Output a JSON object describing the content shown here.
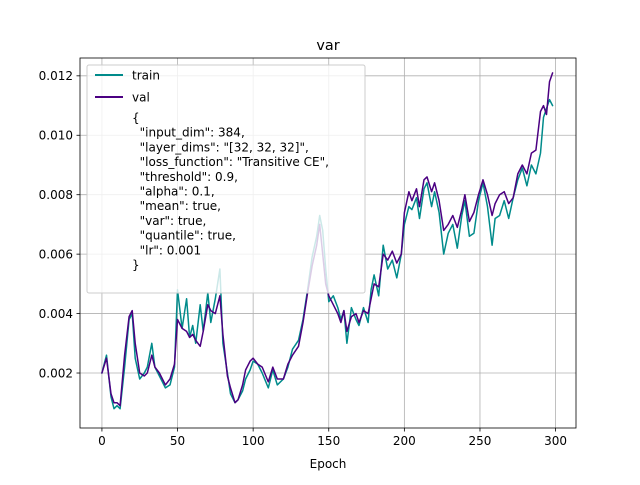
{
  "chart_data": {
    "type": "line",
    "title": "var",
    "xlabel": "Epoch",
    "ylabel": "",
    "xlim": [
      -14.5,
      313.5
    ],
    "ylim": [
      0.00015,
      0.0126
    ],
    "x_ticks": [
      0,
      50,
      100,
      150,
      200,
      250,
      300
    ],
    "y_ticks": [
      0.002,
      0.004,
      0.006,
      0.008,
      0.01,
      0.012
    ],
    "y_tick_labels": [
      "0.002",
      "0.004",
      "0.006",
      "0.008",
      "0.010",
      "0.012"
    ],
    "grid": true,
    "legend_position": "upper-left",
    "series": [
      {
        "name": "train",
        "color": "#008b8b",
        "points": [
          [
            0,
            0.002
          ],
          [
            3,
            0.0026
          ],
          [
            6,
            0.0012
          ],
          [
            8,
            0.0008
          ],
          [
            10,
            0.0009
          ],
          [
            12,
            0.0008
          ],
          [
            15,
            0.0022
          ],
          [
            18,
            0.0038
          ],
          [
            20,
            0.004
          ],
          [
            22,
            0.0025
          ],
          [
            25,
            0.0018
          ],
          [
            28,
            0.002
          ],
          [
            30,
            0.0022
          ],
          [
            33,
            0.003
          ],
          [
            35,
            0.0022
          ],
          [
            38,
            0.0019
          ],
          [
            40,
            0.0017
          ],
          [
            42,
            0.0015
          ],
          [
            45,
            0.0016
          ],
          [
            48,
            0.0022
          ],
          [
            50,
            0.0048
          ],
          [
            53,
            0.0035
          ],
          [
            56,
            0.0045
          ],
          [
            58,
            0.0032
          ],
          [
            60,
            0.0036
          ],
          [
            62,
            0.003
          ],
          [
            65,
            0.0043
          ],
          [
            67,
            0.0034
          ],
          [
            70,
            0.0047
          ],
          [
            72,
            0.0037
          ],
          [
            75,
            0.0045
          ],
          [
            78,
            0.0055
          ],
          [
            80,
            0.003
          ],
          [
            83,
            0.002
          ],
          [
            85,
            0.0013
          ],
          [
            88,
            0.001
          ],
          [
            90,
            0.0011
          ],
          [
            93,
            0.0014
          ],
          [
            95,
            0.0018
          ],
          [
            98,
            0.0021
          ],
          [
            100,
            0.0024
          ],
          [
            103,
            0.0023
          ],
          [
            106,
            0.002
          ],
          [
            110,
            0.0015
          ],
          [
            113,
            0.0021
          ],
          [
            116,
            0.0016
          ],
          [
            120,
            0.0018
          ],
          [
            123,
            0.0022
          ],
          [
            126,
            0.0028
          ],
          [
            130,
            0.0031
          ],
          [
            133,
            0.0038
          ],
          [
            136,
            0.0048
          ],
          [
            139,
            0.0059
          ],
          [
            142,
            0.0066
          ],
          [
            144,
            0.0073
          ],
          [
            146,
            0.0068
          ],
          [
            148,
            0.0055
          ],
          [
            150,
            0.0044
          ],
          [
            153,
            0.0046
          ],
          [
            156,
            0.0042
          ],
          [
            158,
            0.0038
          ],
          [
            160,
            0.0041
          ],
          [
            162,
            0.003
          ],
          [
            165,
            0.0042
          ],
          [
            168,
            0.0038
          ],
          [
            170,
            0.0036
          ],
          [
            173,
            0.0042
          ],
          [
            176,
            0.0037
          ],
          [
            178,
            0.0048
          ],
          [
            180,
            0.0053
          ],
          [
            183,
            0.0046
          ],
          [
            186,
            0.0063
          ],
          [
            189,
            0.0055
          ],
          [
            192,
            0.0058
          ],
          [
            195,
            0.0052
          ],
          [
            198,
            0.006
          ],
          [
            200,
            0.007
          ],
          [
            203,
            0.0076
          ],
          [
            205,
            0.0075
          ],
          [
            208,
            0.0079
          ],
          [
            210,
            0.0072
          ],
          [
            213,
            0.0082
          ],
          [
            215,
            0.0084
          ],
          [
            218,
            0.0076
          ],
          [
            220,
            0.0081
          ],
          [
            223,
            0.0074
          ],
          [
            226,
            0.006
          ],
          [
            229,
            0.0067
          ],
          [
            232,
            0.007
          ],
          [
            235,
            0.0062
          ],
          [
            238,
            0.0073
          ],
          [
            240,
            0.0078
          ],
          [
            243,
            0.0066
          ],
          [
            246,
            0.0067
          ],
          [
            249,
            0.0078
          ],
          [
            252,
            0.0084
          ],
          [
            255,
            0.0076
          ],
          [
            258,
            0.0063
          ],
          [
            260,
            0.0072
          ],
          [
            263,
            0.0073
          ],
          [
            266,
            0.0078
          ],
          [
            269,
            0.0072
          ],
          [
            272,
            0.0079
          ],
          [
            275,
            0.0085
          ],
          [
            278,
            0.0089
          ],
          [
            281,
            0.0083
          ],
          [
            284,
            0.009
          ],
          [
            287,
            0.0087
          ],
          [
            290,
            0.0094
          ],
          [
            292,
            0.0106
          ],
          [
            294,
            0.0109
          ],
          [
            296,
            0.0112
          ],
          [
            298,
            0.011
          ]
        ]
      },
      {
        "name": "val",
        "color": "#4b0082",
        "points": [
          [
            0,
            0.002
          ],
          [
            3,
            0.0025
          ],
          [
            6,
            0.0013
          ],
          [
            8,
            0.001
          ],
          [
            10,
            0.001
          ],
          [
            12,
            0.0009
          ],
          [
            15,
            0.0026
          ],
          [
            18,
            0.0039
          ],
          [
            20,
            0.0041
          ],
          [
            22,
            0.003
          ],
          [
            25,
            0.002
          ],
          [
            28,
            0.0019
          ],
          [
            30,
            0.002
          ],
          [
            33,
            0.0026
          ],
          [
            35,
            0.0022
          ],
          [
            38,
            0.002
          ],
          [
            40,
            0.0018
          ],
          [
            42,
            0.0016
          ],
          [
            45,
            0.0018
          ],
          [
            48,
            0.0023
          ],
          [
            50,
            0.0038
          ],
          [
            53,
            0.0035
          ],
          [
            56,
            0.0034
          ],
          [
            58,
            0.0032
          ],
          [
            60,
            0.0033
          ],
          [
            62,
            0.0031
          ],
          [
            65,
            0.0029
          ],
          [
            67,
            0.0034
          ],
          [
            70,
            0.0043
          ],
          [
            72,
            0.0041
          ],
          [
            75,
            0.004
          ],
          [
            78,
            0.0046
          ],
          [
            80,
            0.0033
          ],
          [
            83,
            0.0019
          ],
          [
            85,
            0.0015
          ],
          [
            88,
            0.001
          ],
          [
            90,
            0.0011
          ],
          [
            93,
            0.0016
          ],
          [
            95,
            0.0021
          ],
          [
            98,
            0.0024
          ],
          [
            100,
            0.0025
          ],
          [
            103,
            0.0023
          ],
          [
            106,
            0.0022
          ],
          [
            110,
            0.0017
          ],
          [
            113,
            0.0022
          ],
          [
            116,
            0.0018
          ],
          [
            120,
            0.0018
          ],
          [
            123,
            0.0023
          ],
          [
            126,
            0.0026
          ],
          [
            130,
            0.0029
          ],
          [
            133,
            0.0037
          ],
          [
            136,
            0.0047
          ],
          [
            139,
            0.0056
          ],
          [
            142,
            0.0063
          ],
          [
            144,
            0.007
          ],
          [
            146,
            0.006
          ],
          [
            148,
            0.005
          ],
          [
            150,
            0.0046
          ],
          [
            153,
            0.0043
          ],
          [
            156,
            0.004
          ],
          [
            158,
            0.0037
          ],
          [
            160,
            0.0041
          ],
          [
            162,
            0.0034
          ],
          [
            165,
            0.0039
          ],
          [
            168,
            0.004
          ],
          [
            170,
            0.0037
          ],
          [
            173,
            0.0041
          ],
          [
            176,
            0.004
          ],
          [
            178,
            0.0045
          ],
          [
            180,
            0.005
          ],
          [
            183,
            0.0049
          ],
          [
            186,
            0.006
          ],
          [
            189,
            0.0058
          ],
          [
            192,
            0.0061
          ],
          [
            195,
            0.0057
          ],
          [
            198,
            0.006
          ],
          [
            200,
            0.0074
          ],
          [
            203,
            0.0081
          ],
          [
            205,
            0.0078
          ],
          [
            208,
            0.0082
          ],
          [
            210,
            0.0076
          ],
          [
            213,
            0.0085
          ],
          [
            215,
            0.0086
          ],
          [
            218,
            0.0081
          ],
          [
            220,
            0.0084
          ],
          [
            223,
            0.0078
          ],
          [
            226,
            0.0068
          ],
          [
            229,
            0.007
          ],
          [
            232,
            0.0073
          ],
          [
            235,
            0.0069
          ],
          [
            238,
            0.0075
          ],
          [
            240,
            0.008
          ],
          [
            243,
            0.0071
          ],
          [
            246,
            0.0074
          ],
          [
            249,
            0.008
          ],
          [
            252,
            0.0085
          ],
          [
            255,
            0.008
          ],
          [
            258,
            0.0073
          ],
          [
            260,
            0.0077
          ],
          [
            263,
            0.008
          ],
          [
            266,
            0.0081
          ],
          [
            269,
            0.0077
          ],
          [
            272,
            0.0079
          ],
          [
            275,
            0.0087
          ],
          [
            278,
            0.009
          ],
          [
            281,
            0.0087
          ],
          [
            284,
            0.0094
          ],
          [
            287,
            0.0095
          ],
          [
            290,
            0.0108
          ],
          [
            292,
            0.011
          ],
          [
            294,
            0.0107
          ],
          [
            296,
            0.0118
          ],
          [
            298,
            0.0121
          ]
        ]
      }
    ],
    "annotation_lines": [
      "{",
      "  \"input_dim\": 384,",
      "  \"layer_dims\": \"[32, 32, 32]\",",
      "  \"loss_function\": \"Transitive CE\",",
      "  \"threshold\": 0.9,",
      "  \"alpha\": 0.1,",
      "  \"mean\": true,",
      "  \"var\": true,",
      "  \"quantile\": true,",
      "  \"lr\": 0.001",
      "}"
    ]
  }
}
